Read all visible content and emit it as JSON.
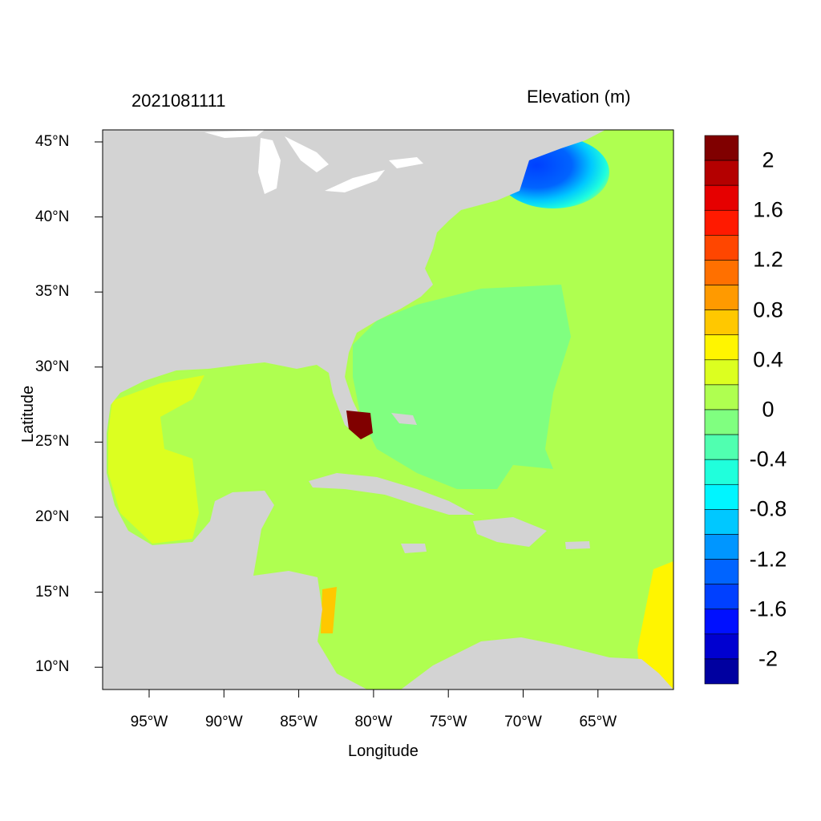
{
  "title_left": "2021081111",
  "title_right": "Elevation (m)",
  "xlabel": "Longitude",
  "ylabel": "Latitude",
  "x_ticks": [
    "95°W",
    "90°W",
    "85°W",
    "80°W",
    "75°W",
    "70°W",
    "65°W"
  ],
  "y_ticks": [
    "45°N",
    "40°N",
    "35°N",
    "30°N",
    "25°N",
    "20°N",
    "15°N",
    "10°N"
  ],
  "extent": {
    "lon": [
      -98.1,
      -60
    ],
    "lat": [
      8.5,
      45.8
    ]
  },
  "colorbar": {
    "labels": [
      "2",
      "1.6",
      "1.2",
      "0.8",
      "0.4",
      "0",
      "-0.4",
      "-0.8",
      "-1.2",
      "-1.6",
      "-2"
    ],
    "colors": [
      "#800000",
      "#b40000",
      "#e60000",
      "#ff1a00",
      "#ff4600",
      "#ff7000",
      "#ff9a00",
      "#ffc800",
      "#fff500",
      "#dcff20",
      "#afff50",
      "#80ff80",
      "#50ffb0",
      "#20ffdc",
      "#00f5ff",
      "#00c8ff",
      "#0096ff",
      "#0064ff",
      "#0040ff",
      "#0010ff",
      "#0000d0",
      "#0000a0"
    ]
  },
  "colors": {
    "land": "#d3d3d3",
    "lakes": "#ffffff"
  }
}
